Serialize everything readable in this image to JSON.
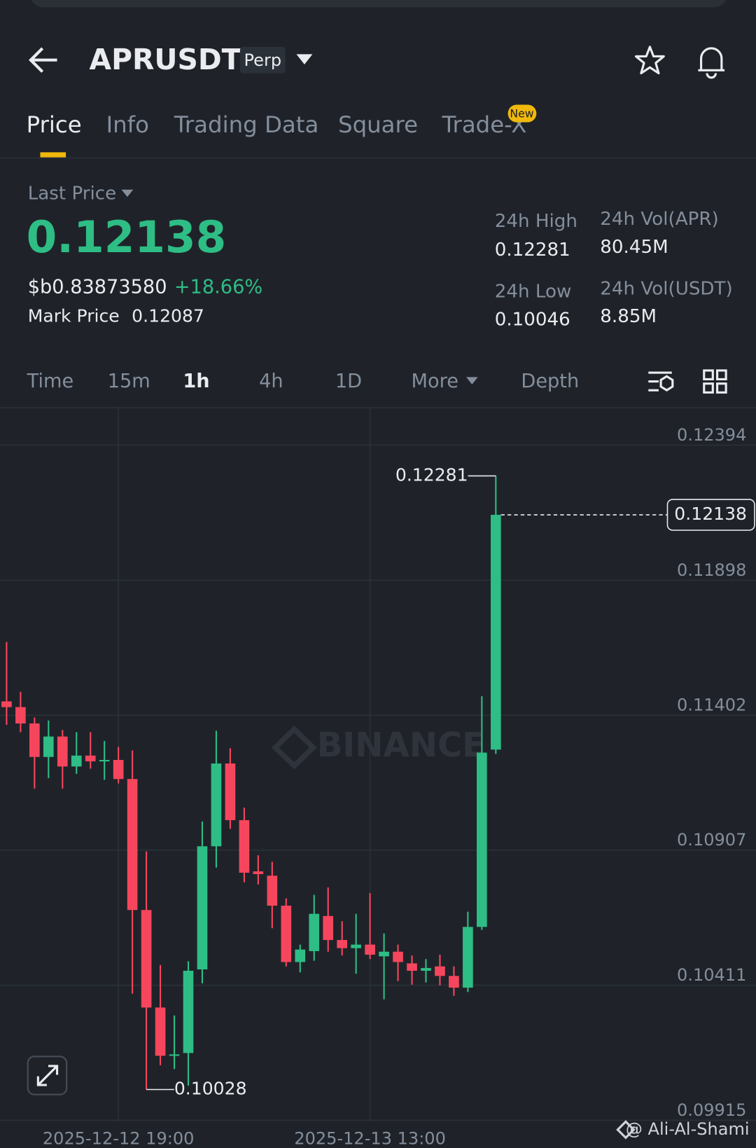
{
  "header": {
    "symbol": "APRUSDT",
    "contract": "Perp",
    "tabs": [
      "Price",
      "Info",
      "Trading Data",
      "Square",
      "Trade-X"
    ],
    "badge": "New"
  },
  "ticker": {
    "label": "Last Price",
    "last_price": "0.12138",
    "usd_price": "$b0.83873580",
    "change": "+18.66%",
    "mark_label": "Mark Price",
    "mark_price": "0.12087",
    "stats": [
      {
        "label": "24h High",
        "value": "0.12281"
      },
      {
        "label": "24h Vol(APR)",
        "value": "80.45M"
      },
      {
        "label": "24h Low",
        "value": "0.10046"
      },
      {
        "label": "24h Vol(USDT)",
        "value": "8.85M"
      }
    ]
  },
  "intervals": [
    "Time",
    "15m",
    "1h",
    "4h",
    "1D",
    "More",
    "Depth"
  ],
  "chart_data": {
    "type": "candlestick",
    "watermark": "BINANCE",
    "credit": "@ Ali-Al-Shami",
    "categories": [
      null,
      null,
      null,
      null,
      null,
      null,
      null,
      null,
      "2025-12-12 19:00",
      null,
      null,
      null,
      null,
      null,
      null,
      null,
      null,
      null,
      null,
      null,
      null,
      null,
      null,
      null,
      null,
      null,
      "2025-12-13 13:00",
      null,
      null,
      null,
      null,
      null,
      null,
      null,
      null,
      null
    ],
    "open": [
      0.11453,
      0.11432,
      0.11372,
      0.11249,
      0.11324,
      0.11214,
      0.11254,
      0.11233,
      0.11238,
      0.11168,
      0.10687,
      0.10329,
      0.10152,
      0.10162,
      0.10469,
      0.10921,
      0.11225,
      0.11017,
      0.10829,
      0.10813,
      0.10703,
      0.10496,
      0.10536,
      0.10665,
      0.10577,
      0.10547,
      0.1056,
      0.10517,
      0.10534,
      0.10491,
      0.10464,
      0.1048,
      0.10445,
      0.10402,
      0.10625,
      0.11276
    ],
    "high": [
      0.11671,
      0.11488,
      0.11394,
      0.11383,
      0.11348,
      0.1134,
      0.1134,
      0.11308,
      0.11286,
      0.11273,
      0.10902,
      0.10485,
      0.103,
      0.10499,
      0.11012,
      0.11345,
      0.11281,
      0.11063,
      0.10888,
      0.10864,
      0.1073,
      0.1056,
      0.10743,
      0.1077,
      0.10646,
      0.10673,
      0.10749,
      0.10601,
      0.1056,
      0.1052,
      0.10507,
      0.10523,
      0.1048,
      0.10681,
      0.11472,
      0.12281
    ],
    "low": [
      0.11367,
      0.1134,
      0.11133,
      0.11171,
      0.11133,
      0.11187,
      0.11206,
      0.11165,
      0.11152,
      0.1038,
      0.10028,
      0.10117,
      0.10103,
      0.10042,
      0.10418,
      0.10843,
      0.10985,
      0.10789,
      0.10781,
      0.1062,
      0.1048,
      0.10458,
      0.10501,
      0.10534,
      0.1052,
      0.10453,
      0.10507,
      0.10359,
      0.10426,
      0.10413,
      0.10421,
      0.1041,
      0.10372,
      0.10386,
      0.10614,
      0.1126
    ],
    "close": [
      0.11432,
      0.11372,
      0.11249,
      0.11324,
      0.11214,
      0.11254,
      0.11233,
      0.11238,
      0.11168,
      0.10687,
      0.10329,
      0.10152,
      0.10157,
      0.10464,
      0.10921,
      0.11225,
      0.11017,
      0.10824,
      0.10819,
      0.10703,
      0.10496,
      0.10542,
      0.10673,
      0.10577,
      0.10547,
      0.1056,
      0.10523,
      0.10534,
      0.10496,
      0.10464,
      0.10474,
      0.10445,
      0.10402,
      0.10625,
      0.11265,
      0.12138
    ],
    "up_color": "#2ebd85",
    "down_color": "#f6465d",
    "ylim": [
      0.0991,
      0.12531
    ],
    "yticks": [
      0.12394,
      0.11898,
      0.11402,
      0.10907,
      0.10411,
      0.09915
    ],
    "grid": true
  }
}
